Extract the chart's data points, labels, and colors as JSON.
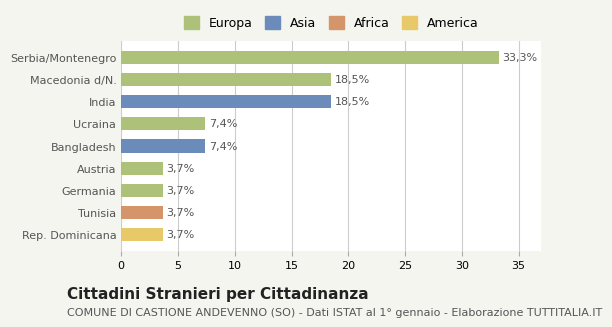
{
  "categories": [
    "Serbia/Montenegro",
    "Macedonia d/N.",
    "India",
    "Ucraina",
    "Bangladesh",
    "Austria",
    "Germania",
    "Tunisia",
    "Rep. Dominicana"
  ],
  "values": [
    33.3,
    18.5,
    18.5,
    7.4,
    7.4,
    3.7,
    3.7,
    3.7,
    3.7
  ],
  "labels": [
    "33,3%",
    "18,5%",
    "18,5%",
    "7,4%",
    "7,4%",
    "3,7%",
    "3,7%",
    "3,7%",
    "3,7%"
  ],
  "colors": [
    "#adc178",
    "#adc178",
    "#6b8cba",
    "#adc178",
    "#6b8cba",
    "#adc178",
    "#adc178",
    "#d4956a",
    "#e8c96a"
  ],
  "legend": [
    {
      "label": "Europa",
      "color": "#adc178"
    },
    {
      "label": "Asia",
      "color": "#6b8cba"
    },
    {
      "label": "Africa",
      "color": "#d4956a"
    },
    {
      "label": "America",
      "color": "#e8c96a"
    }
  ],
  "xlim": [
    0,
    37
  ],
  "xticks": [
    0,
    5,
    10,
    15,
    20,
    25,
    30,
    35
  ],
  "title": "Cittadini Stranieri per Cittadinanza",
  "subtitle": "COMUNE DI CASTIONE ANDEVENNO (SO) - Dati ISTAT al 1° gennaio - Elaborazione TUTTITALIA.IT",
  "background_color": "#f5f5f0",
  "plot_background": "#ffffff",
  "grid_color": "#cccccc",
  "bar_height": 0.6,
  "label_fontsize": 8,
  "title_fontsize": 11,
  "subtitle_fontsize": 8
}
